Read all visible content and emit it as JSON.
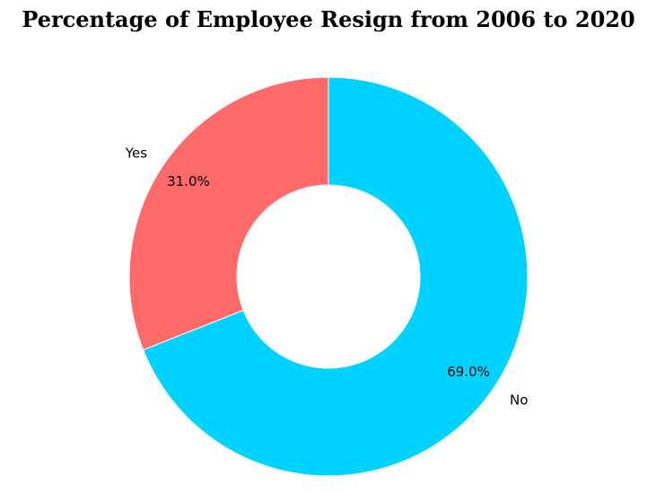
{
  "chart_data": {
    "type": "pie",
    "title": "Percentage of Employee Resign from 2006 to 2020",
    "donut": true,
    "start_angle_deg": 90,
    "direction": "counterclockwise",
    "slices": [
      {
        "label": "Yes",
        "value": 31.0,
        "display": "31.0%",
        "color": "#ff6b6b"
      },
      {
        "label": "No",
        "value": 69.0,
        "display": "69.0%",
        "color": "#00d2ff"
      }
    ]
  }
}
